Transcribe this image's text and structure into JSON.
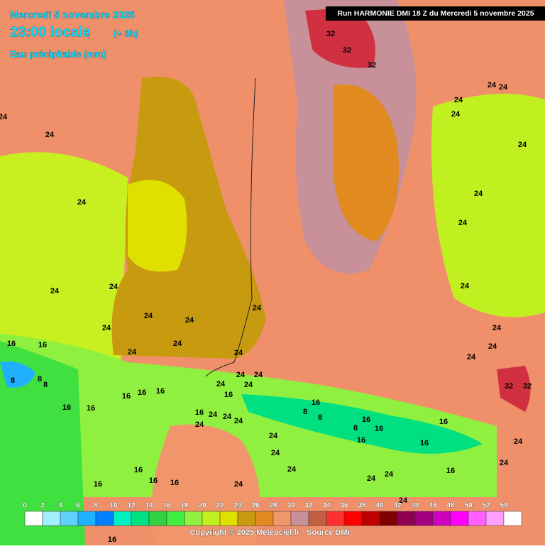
{
  "header": {
    "date": "Mercredi 5 novembre 2025",
    "time": "23:00 locale",
    "offset": "(+ 3h)",
    "variable": "Eau précipitable (mm)",
    "run": "Run HARMONIE DMI 18 Z du Mercredi 5 novembre 2025"
  },
  "legend": {
    "ticks": [
      0,
      2,
      4,
      6,
      8,
      10,
      12,
      14,
      16,
      18,
      20,
      22,
      24,
      26,
      28,
      30,
      32,
      34,
      36,
      38,
      40,
      42,
      44,
      46,
      48,
      50,
      52,
      54
    ],
    "colors": [
      "#ffffff",
      "#a0f0ff",
      "#60d0ff",
      "#20b0ff",
      "#0080ff",
      "#00f0c0",
      "#00e080",
      "#30d040",
      "#40f040",
      "#90f040",
      "#c0f020",
      "#e0e000",
      "#c89a10",
      "#e08a20",
      "#f0966a",
      "#c89098",
      "#c06040",
      "#ff3030",
      "#ff0000",
      "#c00000",
      "#800000",
      "#900050",
      "#a00080",
      "#d000c0",
      "#ff00ff",
      "#ff60ff",
      "#ffa0ff",
      "#ffffff"
    ]
  },
  "map_labels": [
    "24",
    "24",
    "24",
    "24",
    "24",
    "24",
    "24",
    "24",
    "24",
    "24",
    "24",
    "24",
    "32",
    "32",
    "32",
    "24",
    "24",
    "24",
    "24",
    "24",
    "24",
    "24",
    "24",
    "24",
    "24",
    "24",
    "32",
    "32",
    "16",
    "16",
    "8",
    "8",
    "8",
    "16",
    "16",
    "16",
    "16",
    "16",
    "16",
    "24",
    "24",
    "24",
    "24",
    "16",
    "8",
    "8",
    "8",
    "16",
    "16",
    "16",
    "16",
    "16",
    "24",
    "24",
    "24",
    "24",
    "24",
    "16",
    "24",
    "24",
    "16",
    "16",
    "16",
    "16",
    "24",
    "24",
    "16",
    "24",
    "24",
    "24",
    "24",
    "16"
  ],
  "copyright": "Copyright © 2025 Meteociel.fr - Source DMI"
}
